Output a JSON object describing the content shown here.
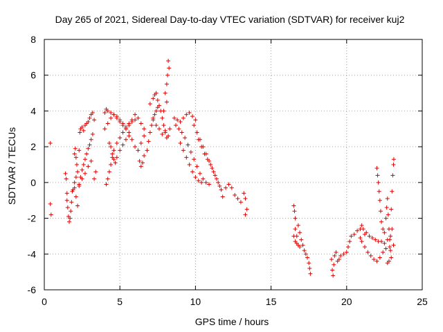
{
  "chart_data": {
    "type": "scatter",
    "title": "Day 265 of 2021, Sidereal Day-to-day VTEC variation (SDTVAR) for receiver kuj2",
    "xlabel": "GPS time / hours",
    "ylabel": "SDTVAR / TECUs",
    "xlim": [
      0,
      25
    ],
    "ylim": [
      -6,
      8
    ],
    "xticks": [
      0,
      5,
      10,
      15,
      20,
      25
    ],
    "yticks": [
      -6,
      -4,
      -2,
      0,
      2,
      4,
      6,
      8
    ],
    "xtick_labels": [
      "0",
      "5",
      "10",
      "15",
      "20",
      "25"
    ],
    "ytick_labels": [
      "-6",
      "-4",
      "-2",
      "0",
      "2",
      "4",
      "6",
      "8"
    ],
    "grid": true,
    "marker": "plus",
    "color": "#e00000",
    "series": [
      {
        "name": "SDTVAR",
        "points": [
          [
            0.4,
            2.2
          ],
          [
            0.4,
            -1.2
          ],
          [
            0.45,
            -1.8
          ],
          [
            1.4,
            0.5
          ],
          [
            1.45,
            0.2
          ],
          [
            1.5,
            -0.6
          ],
          [
            1.5,
            -1.0
          ],
          [
            1.55,
            -1.4
          ],
          [
            1.6,
            -1.9
          ],
          [
            1.65,
            -2.2
          ],
          [
            1.7,
            -2.0
          ],
          [
            1.75,
            -1.6
          ],
          [
            1.8,
            -1.1
          ],
          [
            1.85,
            -0.5
          ],
          [
            2.0,
            1.6
          ],
          [
            2.05,
            1.9
          ],
          [
            2.1,
            1.4
          ],
          [
            2.15,
            1.0
          ],
          [
            2.2,
            0.6
          ],
          [
            2.3,
            1.8
          ],
          [
            2.35,
            2.8
          ],
          [
            2.4,
            3.0
          ],
          [
            2.5,
            3.1
          ],
          [
            2.6,
            2.9
          ],
          [
            2.7,
            3.2
          ],
          [
            2.8,
            3.3
          ],
          [
            2.9,
            3.4
          ],
          [
            3.0,
            3.6
          ],
          [
            3.1,
            3.8
          ],
          [
            3.2,
            3.9
          ],
          [
            3.3,
            3.5
          ],
          [
            2.0,
            -0.3
          ],
          [
            2.1,
            -0.8
          ],
          [
            2.2,
            -1.3
          ],
          [
            2.3,
            -0.2
          ],
          [
            2.4,
            0.3
          ],
          [
            2.5,
            0.7
          ],
          [
            2.6,
            1.0
          ],
          [
            2.7,
            1.3
          ],
          [
            2.8,
            1.6
          ],
          [
            2.9,
            1.9
          ],
          [
            3.0,
            2.1
          ],
          [
            3.1,
            2.4
          ],
          [
            3.2,
            2.7
          ],
          [
            1.9,
            -0.4
          ],
          [
            2.0,
            0.0
          ],
          [
            2.1,
            0.3
          ],
          [
            2.3,
            -0.1
          ],
          [
            2.5,
            0.2
          ],
          [
            2.7,
            0.5
          ],
          [
            2.9,
            0.9
          ],
          [
            3.1,
            1.2
          ],
          [
            3.3,
            0.2
          ],
          [
            3.4,
            0.6
          ],
          [
            4.0,
            3.9
          ],
          [
            4.1,
            4.1
          ],
          [
            4.2,
            4.0
          ],
          [
            4.4,
            3.9
          ],
          [
            4.6,
            3.8
          ],
          [
            4.8,
            3.6
          ],
          [
            5.0,
            3.4
          ],
          [
            5.2,
            3.2
          ],
          [
            5.4,
            3.0
          ],
          [
            5.6,
            2.8
          ],
          [
            5.8,
            2.4
          ],
          [
            6.0,
            2.0
          ],
          [
            6.2,
            1.8
          ],
          [
            6.4,
            2.2
          ],
          [
            6.6,
            2.6
          ],
          [
            4.0,
            3.0
          ],
          [
            4.2,
            3.3
          ],
          [
            4.4,
            3.6
          ],
          [
            4.6,
            3.8
          ],
          [
            4.8,
            3.7
          ],
          [
            5.0,
            3.5
          ],
          [
            5.2,
            3.3
          ],
          [
            5.4,
            3.1
          ],
          [
            5.6,
            3.3
          ],
          [
            5.8,
            3.5
          ],
          [
            6.0,
            3.8
          ],
          [
            6.2,
            3.6
          ],
          [
            6.4,
            3.3
          ],
          [
            6.6,
            3.0
          ],
          [
            4.2,
            0.2
          ],
          [
            4.1,
            -0.1
          ],
          [
            4.3,
            0.6
          ],
          [
            4.4,
            1.0
          ],
          [
            4.5,
            1.4
          ],
          [
            4.6,
            1.8
          ],
          [
            4.8,
            2.2
          ],
          [
            5.0,
            2.5
          ],
          [
            5.2,
            2.8
          ],
          [
            5.4,
            3.0
          ],
          [
            5.6,
            3.2
          ],
          [
            5.8,
            3.4
          ],
          [
            6.0,
            3.5
          ],
          [
            4.3,
            2.2
          ],
          [
            4.4,
            2.0
          ],
          [
            4.5,
            1.6
          ],
          [
            4.6,
            1.3
          ],
          [
            4.7,
            1.1
          ],
          [
            4.8,
            1.4
          ],
          [
            5.0,
            1.8
          ],
          [
            5.2,
            2.1
          ],
          [
            5.4,
            2.4
          ],
          [
            5.6,
            2.6
          ],
          [
            6.3,
            1.2
          ],
          [
            6.4,
            0.9
          ],
          [
            6.5,
            1.1
          ],
          [
            6.6,
            1.5
          ],
          [
            6.8,
            1.8
          ],
          [
            6.9,
            2.3
          ],
          [
            7.0,
            2.8
          ],
          [
            7.1,
            3.2
          ],
          [
            7.2,
            3.5
          ],
          [
            7.3,
            3.8
          ],
          [
            7.4,
            4.0
          ],
          [
            7.5,
            4.2
          ],
          [
            7.0,
            4.4
          ],
          [
            7.2,
            4.7
          ],
          [
            7.3,
            4.9
          ],
          [
            7.4,
            5.0
          ],
          [
            7.5,
            4.6
          ],
          [
            7.6,
            4.3
          ],
          [
            7.7,
            4.0
          ],
          [
            7.8,
            3.6
          ],
          [
            7.9,
            3.2
          ],
          [
            8.0,
            2.8
          ],
          [
            8.1,
            2.5
          ],
          [
            8.2,
            2.6
          ],
          [
            8.3,
            3.0
          ],
          [
            7.2,
            3.6
          ],
          [
            7.4,
            3.2
          ],
          [
            7.6,
            3.0
          ],
          [
            7.8,
            2.7
          ],
          [
            8.0,
            2.9
          ],
          [
            8.1,
            5.5
          ],
          [
            8.15,
            6.0
          ],
          [
            8.2,
            6.8
          ],
          [
            8.25,
            6.4
          ],
          [
            8.0,
            5.0
          ],
          [
            8.1,
            4.5
          ],
          [
            7.9,
            4.0
          ],
          [
            8.6,
            3.6
          ],
          [
            8.8,
            3.5
          ],
          [
            9.0,
            3.4
          ],
          [
            9.2,
            3.6
          ],
          [
            9.4,
            3.8
          ],
          [
            9.6,
            3.9
          ],
          [
            9.8,
            3.7
          ],
          [
            10.0,
            3.5
          ],
          [
            8.7,
            3.2
          ],
          [
            8.9,
            3.0
          ],
          [
            9.1,
            2.8
          ],
          [
            9.3,
            2.5
          ],
          [
            9.5,
            2.1
          ],
          [
            9.7,
            1.7
          ],
          [
            9.9,
            1.3
          ],
          [
            10.1,
            0.9
          ],
          [
            10.3,
            0.5
          ],
          [
            10.5,
            0.2
          ],
          [
            10.7,
            0.0
          ],
          [
            10.9,
            -0.1
          ],
          [
            9.0,
            2.2
          ],
          [
            9.2,
            1.8
          ],
          [
            9.4,
            1.4
          ],
          [
            9.6,
            1.0
          ],
          [
            9.8,
            0.6
          ],
          [
            10.0,
            0.3
          ],
          [
            10.2,
            0.1
          ],
          [
            10.4,
            0.0
          ],
          [
            9.9,
            3.2
          ],
          [
            10.1,
            2.8
          ],
          [
            10.3,
            2.4
          ],
          [
            10.5,
            2.0
          ],
          [
            10.7,
            1.6
          ],
          [
            10.9,
            1.2
          ],
          [
            11.1,
            0.8
          ],
          [
            11.3,
            0.4
          ],
          [
            11.5,
            0.0
          ],
          [
            11.7,
            -0.4
          ],
          [
            11.8,
            -0.8
          ],
          [
            10.2,
            2.4
          ],
          [
            10.4,
            2.0
          ],
          [
            10.6,
            1.6
          ],
          [
            10.8,
            1.3
          ],
          [
            11.0,
            1.0
          ],
          [
            11.2,
            0.6
          ],
          [
            11.4,
            0.2
          ],
          [
            11.6,
            -0.2
          ],
          [
            12.0,
            -0.3
          ],
          [
            12.2,
            -0.1
          ],
          [
            12.4,
            -0.3
          ],
          [
            12.6,
            -0.7
          ],
          [
            12.8,
            -0.9
          ],
          [
            13.0,
            -1.1
          ],
          [
            13.2,
            -0.6
          ],
          [
            13.3,
            -1.8
          ],
          [
            13.3,
            -0.9
          ],
          [
            13.4,
            -1.5
          ],
          [
            16.5,
            -1.3
          ],
          [
            16.55,
            -1.6
          ],
          [
            16.6,
            -2.0
          ],
          [
            16.6,
            -2.6
          ],
          [
            16.7,
            -3.0
          ],
          [
            16.8,
            -2.4
          ],
          [
            16.9,
            -2.8
          ],
          [
            17.0,
            -3.2
          ],
          [
            17.1,
            -3.5
          ],
          [
            17.2,
            -3.8
          ],
          [
            17.3,
            -4.0
          ],
          [
            17.4,
            -4.2
          ],
          [
            17.5,
            -4.5
          ],
          [
            17.55,
            -4.8
          ],
          [
            17.6,
            -5.1
          ],
          [
            16.5,
            -3.0
          ],
          [
            16.6,
            -3.3
          ],
          [
            16.7,
            -3.4
          ],
          [
            16.8,
            -3.5
          ],
          [
            16.9,
            -3.6
          ],
          [
            19.0,
            -4.3
          ],
          [
            19.05,
            -4.9
          ],
          [
            19.1,
            -5.2
          ],
          [
            19.15,
            -4.6
          ],
          [
            19.2,
            -4.1
          ],
          [
            19.3,
            -3.9
          ],
          [
            19.4,
            -4.4
          ],
          [
            19.5,
            -4.3
          ],
          [
            19.6,
            -4.1
          ],
          [
            19.8,
            -4.0
          ],
          [
            20.0,
            -3.9
          ],
          [
            20.1,
            -3.6
          ],
          [
            20.2,
            -3.3
          ],
          [
            20.3,
            -3.0
          ],
          [
            20.5,
            -2.9
          ],
          [
            20.7,
            -2.7
          ],
          [
            20.9,
            -2.6
          ],
          [
            21.0,
            -2.4
          ],
          [
            21.1,
            -2.6
          ],
          [
            21.2,
            -2.9
          ],
          [
            20.9,
            -3.1
          ],
          [
            21.0,
            -3.3
          ],
          [
            21.2,
            -3.6
          ],
          [
            21.4,
            -3.9
          ],
          [
            21.6,
            -4.1
          ],
          [
            21.8,
            -4.3
          ],
          [
            22.0,
            -4.4
          ],
          [
            22.2,
            -4.2
          ],
          [
            22.4,
            -3.9
          ],
          [
            22.6,
            -3.7
          ],
          [
            21.3,
            -2.8
          ],
          [
            21.5,
            -3.0
          ],
          [
            21.7,
            -3.1
          ],
          [
            21.9,
            -3.2
          ],
          [
            22.1,
            -3.3
          ],
          [
            22.3,
            -3.3
          ],
          [
            22.5,
            -3.4
          ],
          [
            22.7,
            -3.2
          ],
          [
            22.0,
            0.8
          ],
          [
            22.05,
            0.4
          ],
          [
            22.1,
            0.0
          ],
          [
            22.15,
            -0.5
          ],
          [
            22.2,
            -1.0
          ],
          [
            22.25,
            -1.6
          ],
          [
            22.3,
            -2.2
          ],
          [
            22.4,
            -2.6
          ],
          [
            22.5,
            -2.8
          ],
          [
            22.6,
            -2.0
          ],
          [
            22.65,
            -1.4
          ],
          [
            22.7,
            -0.9
          ],
          [
            22.75,
            -1.8
          ],
          [
            22.8,
            -2.6
          ],
          [
            22.85,
            -3.2
          ],
          [
            22.9,
            -3.8
          ],
          [
            22.95,
            -4.2
          ],
          [
            22.8,
            -4.4
          ],
          [
            22.85,
            -3.6
          ],
          [
            22.9,
            -3.0
          ],
          [
            22.95,
            -1.5
          ],
          [
            23.0,
            -0.5
          ],
          [
            23.05,
            0.4
          ],
          [
            23.1,
            1.0
          ],
          [
            23.12,
            1.3
          ],
          [
            23.0,
            -2.6
          ],
          [
            23.1,
            -3.5
          ],
          [
            22.7,
            -4.5
          ]
        ]
      }
    ]
  }
}
